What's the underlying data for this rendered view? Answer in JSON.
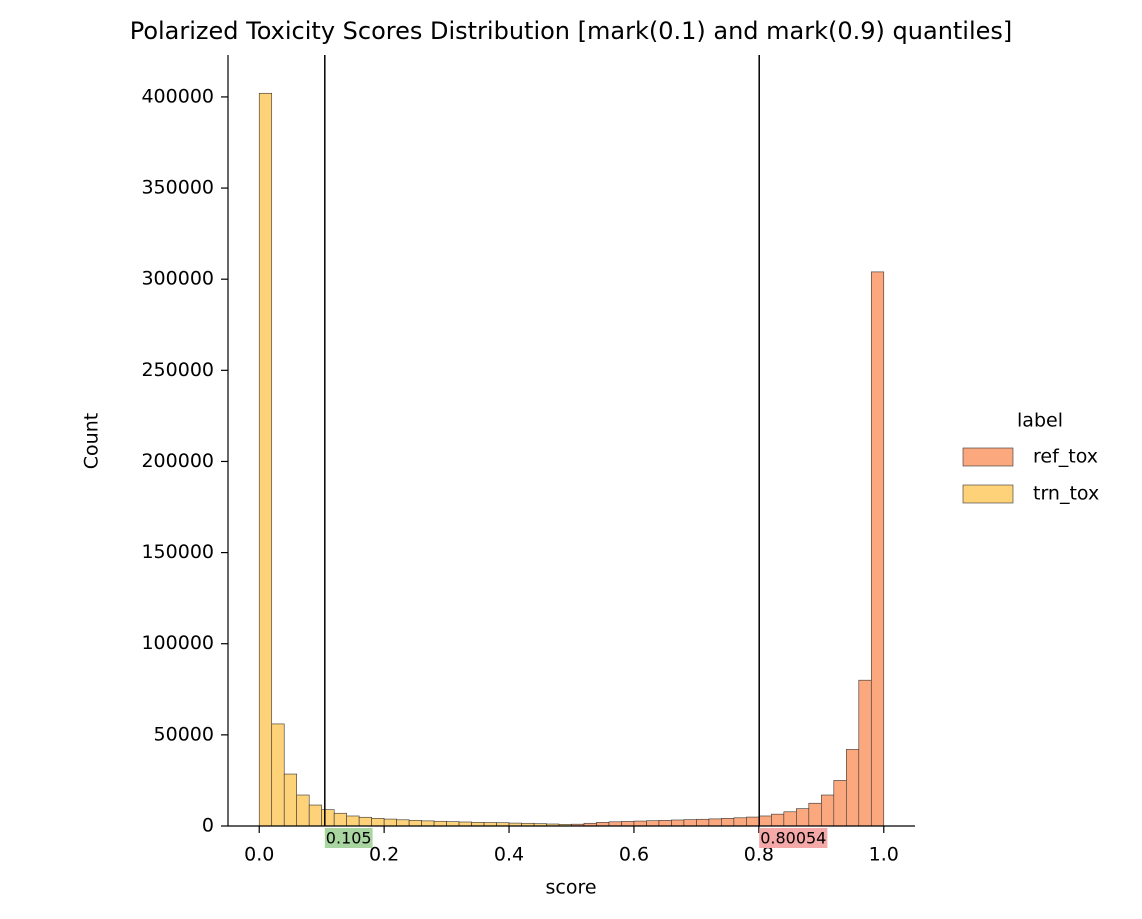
{
  "chart_data": {
    "type": "histogram",
    "title": "Polarized Toxicity Scores Distribution [mark(0.1) and mark(0.9) quantiles]",
    "x_label": "score",
    "y_label": "Count",
    "bins": [
      0,
      0.02,
      0.04,
      0.06,
      0.08,
      0.1,
      0.12,
      0.14,
      0.16,
      0.18,
      0.2,
      0.22,
      0.24,
      0.26,
      0.28,
      0.3,
      0.32,
      0.34,
      0.36,
      0.38,
      0.4,
      0.42,
      0.44,
      0.46,
      0.48,
      0.5,
      0.52,
      0.54,
      0.56,
      0.58,
      0.6,
      0.62,
      0.64,
      0.66,
      0.68,
      0.7,
      0.72,
      0.74,
      0.76,
      0.78,
      0.8,
      0.82,
      0.84,
      0.86,
      0.88,
      0.9,
      0.92,
      0.94,
      0.96,
      0.98,
      1
    ],
    "series": [
      {
        "name": "ref_tox",
        "color": "#fba87e",
        "values": [
          0,
          0,
          0,
          0,
          0,
          0,
          0,
          0,
          0,
          0,
          0,
          0,
          0,
          0,
          0,
          0,
          0,
          0,
          0,
          0,
          0,
          0,
          0,
          0,
          0,
          1000,
          1500,
          2000,
          2300,
          2500,
          2700,
          2900,
          3100,
          3300,
          3500,
          3700,
          3900,
          4200,
          4500,
          4900,
          5500,
          6500,
          7800,
          9500,
          12500,
          17000,
          25000,
          42000,
          80000,
          304000
        ]
      },
      {
        "name": "trn_tox",
        "color": "#fdd279",
        "values": [
          402000,
          56000,
          28500,
          17000,
          11500,
          9000,
          7000,
          5500,
          4800,
          4200,
          3800,
          3400,
          3100,
          2800,
          2600,
          2400,
          2200,
          2000,
          1900,
          1800,
          1600,
          1500,
          1300,
          1100,
          900,
          0,
          0,
          0,
          0,
          0,
          0,
          0,
          0,
          0,
          0,
          0,
          0,
          0,
          0,
          0,
          0,
          0,
          0,
          0,
          0,
          0,
          0,
          0,
          0,
          0
        ]
      }
    ],
    "legend_title": "label",
    "vlines": [
      {
        "value": 0.105,
        "color": "#a8d5a0"
      },
      {
        "value": 0.80054,
        "color": "#f4a8a8"
      }
    ],
    "xlim": [
      -0.05,
      1.05
    ],
    "ylim": [
      0,
      423000
    ],
    "xticks": [
      {
        "value": 0,
        "label": "0.0"
      },
      0.2,
      0.4,
      0.6,
      0.8,
      {
        "value": 1,
        "label": "1.0"
      }
    ],
    "yticks": [
      0,
      50000,
      100000,
      150000,
      200000,
      250000,
      300000,
      350000,
      400000
    ]
  }
}
